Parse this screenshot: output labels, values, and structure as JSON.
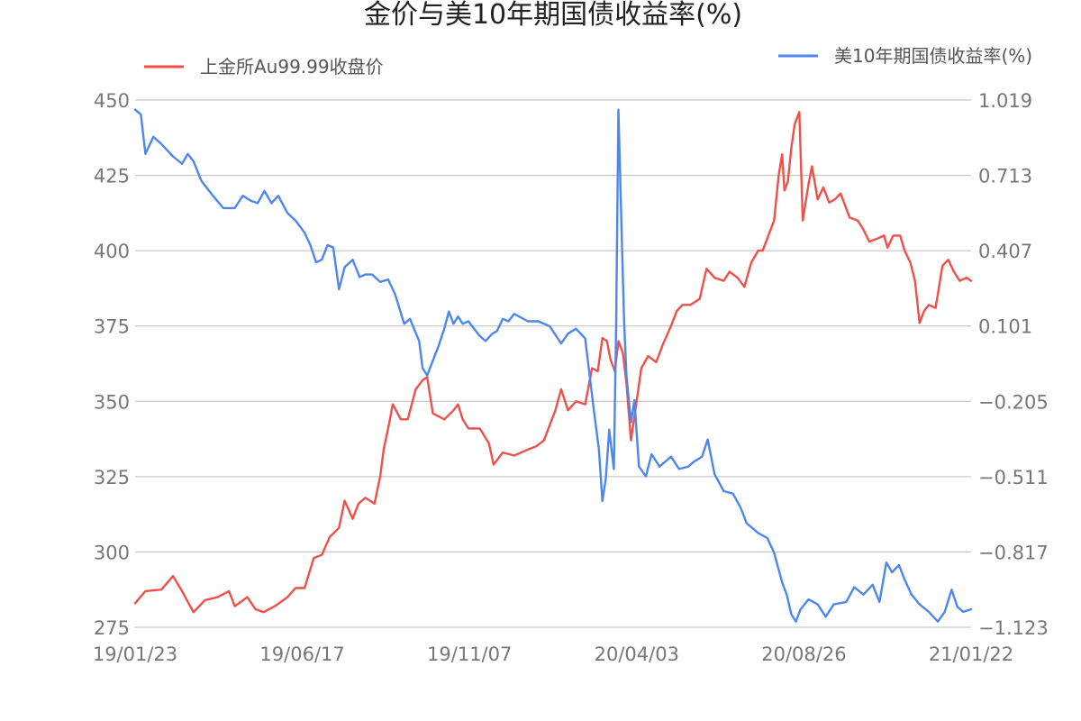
{
  "chart_data": {
    "type": "line",
    "title": "金价与美10年期国债收益率(%)",
    "legend_placement": "top",
    "grid": true,
    "x_tick_labels": [
      "19/01/23",
      "19/06/17",
      "19/11/07",
      "20/04/03",
      "20/08/26",
      "21/01/22"
    ],
    "x_range": [
      "2019-01-23",
      "2021-01-22"
    ],
    "y_left": {
      "ticks": [
        "450",
        "425",
        "400",
        "375",
        "350",
        "325",
        "300",
        "275"
      ],
      "range": [
        275,
        450
      ]
    },
    "y_right": {
      "ticks": [
        "1.019",
        "0.713",
        "0.407",
        "0.101",
        "−0.205",
        "−0.511",
        "−0.817",
        "−1.123"
      ],
      "range": [
        -1.123,
        1.019
      ]
    },
    "series": [
      {
        "name": "上金所Au99.99收盘价",
        "axis": "left",
        "color": "#f0504a",
        "points": [
          [
            "2019-01-23",
            283
          ],
          [
            "2019-02-01",
            287
          ],
          [
            "2019-02-15",
            287.5
          ],
          [
            "2019-02-25",
            292
          ],
          [
            "2019-03-05",
            287
          ],
          [
            "2019-03-15",
            280
          ],
          [
            "2019-03-25",
            284
          ],
          [
            "2019-04-05",
            285
          ],
          [
            "2019-04-15",
            287
          ],
          [
            "2019-04-20",
            282
          ],
          [
            "2019-05-01",
            285
          ],
          [
            "2019-05-08",
            281
          ],
          [
            "2019-05-15",
            280
          ],
          [
            "2019-05-25",
            282
          ],
          [
            "2019-06-05",
            285
          ],
          [
            "2019-06-12",
            288
          ],
          [
            "2019-06-20",
            288
          ],
          [
            "2019-06-28",
            298
          ],
          [
            "2019-07-05",
            299
          ],
          [
            "2019-07-12",
            305
          ],
          [
            "2019-07-20",
            308
          ],
          [
            "2019-07-25",
            317
          ],
          [
            "2019-08-01",
            311
          ],
          [
            "2019-08-06",
            316
          ],
          [
            "2019-08-12",
            318
          ],
          [
            "2019-08-20",
            316
          ],
          [
            "2019-08-25",
            325
          ],
          [
            "2019-08-28",
            334
          ],
          [
            "2019-09-02",
            343
          ],
          [
            "2019-09-05",
            349
          ],
          [
            "2019-09-12",
            344
          ],
          [
            "2019-09-18",
            344
          ],
          [
            "2019-09-25",
            354
          ],
          [
            "2019-10-01",
            357
          ],
          [
            "2019-10-05",
            358
          ],
          [
            "2019-10-10",
            346
          ],
          [
            "2019-10-20",
            344
          ],
          [
            "2019-10-28",
            347
          ],
          [
            "2019-11-01",
            349
          ],
          [
            "2019-11-05",
            344
          ],
          [
            "2019-11-10",
            341
          ],
          [
            "2019-11-20",
            341
          ],
          [
            "2019-11-28",
            336
          ],
          [
            "2019-12-02",
            329
          ],
          [
            "2019-12-10",
            333
          ],
          [
            "2019-12-20",
            332
          ],
          [
            "2020-01-01",
            334
          ],
          [
            "2020-01-08",
            335
          ],
          [
            "2020-01-15",
            337
          ],
          [
            "2020-01-25",
            347
          ],
          [
            "2020-01-30",
            354
          ],
          [
            "2020-02-05",
            347
          ],
          [
            "2020-02-12",
            350
          ],
          [
            "2020-02-20",
            349
          ],
          [
            "2020-02-26",
            361
          ],
          [
            "2020-03-02",
            360
          ],
          [
            "2020-03-06",
            371
          ],
          [
            "2020-03-10",
            370
          ],
          [
            "2020-03-13",
            364
          ],
          [
            "2020-03-17",
            360
          ],
          [
            "2020-03-20",
            370
          ],
          [
            "2020-03-24",
            366
          ],
          [
            "2020-03-27",
            356
          ],
          [
            "2020-03-31",
            337
          ],
          [
            "2020-04-03",
            345
          ],
          [
            "2020-04-09",
            361
          ],
          [
            "2020-04-15",
            365
          ],
          [
            "2020-04-22",
            363
          ],
          [
            "2020-04-28",
            369
          ],
          [
            "2020-05-05",
            375
          ],
          [
            "2020-05-10",
            380
          ],
          [
            "2020-05-15",
            382
          ],
          [
            "2020-05-22",
            382
          ],
          [
            "2020-05-30",
            384
          ],
          [
            "2020-06-05",
            394
          ],
          [
            "2020-06-12",
            391
          ],
          [
            "2020-06-20",
            390
          ],
          [
            "2020-06-25",
            393
          ],
          [
            "2020-07-02",
            391
          ],
          [
            "2020-07-08",
            388
          ],
          [
            "2020-07-14",
            396
          ],
          [
            "2020-07-20",
            400
          ],
          [
            "2020-07-24",
            400
          ],
          [
            "2020-07-28",
            404
          ],
          [
            "2020-08-03",
            410
          ],
          [
            "2020-08-07",
            425
          ],
          [
            "2020-08-10",
            432
          ],
          [
            "2020-08-12",
            420
          ],
          [
            "2020-08-15",
            423
          ],
          [
            "2020-08-18",
            434
          ],
          [
            "2020-08-21",
            442
          ],
          [
            "2020-08-25",
            446
          ],
          [
            "2020-08-28",
            410
          ],
          [
            "2020-09-02",
            422
          ],
          [
            "2020-09-05",
            428
          ],
          [
            "2020-09-10",
            417
          ],
          [
            "2020-09-15",
            421
          ],
          [
            "2020-09-20",
            416
          ],
          [
            "2020-09-25",
            417
          ],
          [
            "2020-09-30",
            419
          ],
          [
            "2020-10-08",
            411
          ],
          [
            "2020-10-15",
            410
          ],
          [
            "2020-10-20",
            407
          ],
          [
            "2020-10-25",
            403
          ],
          [
            "2020-11-01",
            404
          ],
          [
            "2020-11-07",
            405
          ],
          [
            "2020-11-10",
            401
          ],
          [
            "2020-11-15",
            405
          ],
          [
            "2020-11-21",
            405
          ],
          [
            "2020-11-25",
            400
          ],
          [
            "2020-11-30",
            396
          ],
          [
            "2020-12-04",
            390
          ],
          [
            "2020-12-08",
            376
          ],
          [
            "2020-12-12",
            380
          ],
          [
            "2020-12-16",
            382
          ],
          [
            "2020-12-22",
            381
          ],
          [
            "2020-12-28",
            395
          ],
          [
            "2021-01-02",
            397
          ],
          [
            "2021-01-07",
            393
          ],
          [
            "2021-01-12",
            390
          ],
          [
            "2021-01-18",
            391
          ],
          [
            "2021-01-22",
            390
          ]
        ]
      },
      {
        "name": "美10年期国债收益率(%)",
        "axis": "right",
        "color": "#4e86f0",
        "points": [
          [
            "2019-01-23",
            0.98
          ],
          [
            "2019-01-28",
            0.96
          ],
          [
            "2019-02-01",
            0.8
          ],
          [
            "2019-02-08",
            0.87
          ],
          [
            "2019-02-15",
            0.84
          ],
          [
            "2019-02-25",
            0.79
          ],
          [
            "2019-03-05",
            0.76
          ],
          [
            "2019-03-10",
            0.8
          ],
          [
            "2019-03-15",
            0.77
          ],
          [
            "2019-03-22",
            0.69
          ],
          [
            "2019-04-01",
            0.63
          ],
          [
            "2019-04-10",
            0.58
          ],
          [
            "2019-04-20",
            0.58
          ],
          [
            "2019-04-27",
            0.63
          ],
          [
            "2019-05-04",
            0.61
          ],
          [
            "2019-05-10",
            0.6
          ],
          [
            "2019-05-16",
            0.65
          ],
          [
            "2019-05-22",
            0.6
          ],
          [
            "2019-05-28",
            0.63
          ],
          [
            "2019-06-05",
            0.56
          ],
          [
            "2019-06-12",
            0.53
          ],
          [
            "2019-06-20",
            0.48
          ],
          [
            "2019-06-25",
            0.43
          ],
          [
            "2019-06-30",
            0.36
          ],
          [
            "2019-07-05",
            0.37
          ],
          [
            "2019-07-10",
            0.43
          ],
          [
            "2019-07-15",
            0.42
          ],
          [
            "2019-07-20",
            0.25
          ],
          [
            "2019-07-25",
            0.34
          ],
          [
            "2019-08-01",
            0.37
          ],
          [
            "2019-08-07",
            0.3
          ],
          [
            "2019-08-12",
            0.31
          ],
          [
            "2019-08-18",
            0.31
          ],
          [
            "2019-08-25",
            0.28
          ],
          [
            "2019-09-01",
            0.29
          ],
          [
            "2019-09-07",
            0.23
          ],
          [
            "2019-09-15",
            0.11
          ],
          [
            "2019-09-20",
            0.13
          ],
          [
            "2019-09-28",
            0.04
          ],
          [
            "2019-10-01",
            -0.07
          ],
          [
            "2019-10-05",
            -0.1
          ],
          [
            "2019-10-10",
            -0.04
          ],
          [
            "2019-10-15",
            0.02
          ],
          [
            "2019-10-20",
            0.09
          ],
          [
            "2019-10-24",
            0.16
          ],
          [
            "2019-10-28",
            0.11
          ],
          [
            "2019-11-01",
            0.14
          ],
          [
            "2019-11-05",
            0.11
          ],
          [
            "2019-11-10",
            0.12
          ],
          [
            "2019-11-15",
            0.09
          ],
          [
            "2019-11-20",
            0.06
          ],
          [
            "2019-11-25",
            0.04
          ],
          [
            "2019-12-01",
            0.07
          ],
          [
            "2019-12-05",
            0.08
          ],
          [
            "2019-12-10",
            0.13
          ],
          [
            "2019-12-15",
            0.12
          ],
          [
            "2019-12-20",
            0.15
          ],
          [
            "2020-01-01",
            0.12
          ],
          [
            "2020-01-10",
            0.12
          ],
          [
            "2020-01-20",
            0.1
          ],
          [
            "2020-01-30",
            0.03
          ],
          [
            "2020-02-05",
            0.07
          ],
          [
            "2020-02-12",
            0.09
          ],
          [
            "2020-02-20",
            0.05
          ],
          [
            "2020-02-27",
            -0.22
          ],
          [
            "2020-03-03",
            -0.4
          ],
          [
            "2020-03-06",
            -0.61
          ],
          [
            "2020-03-09",
            -0.52
          ],
          [
            "2020-03-12",
            -0.32
          ],
          [
            "2020-03-16",
            -0.48
          ],
          [
            "2020-03-18",
            0.08
          ],
          [
            "2020-03-20",
            0.98
          ],
          [
            "2020-03-23",
            0.45
          ],
          [
            "2020-03-25",
            0.12
          ],
          [
            "2020-03-27",
            -0.1
          ],
          [
            "2020-03-31",
            -0.29
          ],
          [
            "2020-04-03",
            -0.2
          ],
          [
            "2020-04-07",
            -0.47
          ],
          [
            "2020-04-13",
            -0.51
          ],
          [
            "2020-04-18",
            -0.42
          ],
          [
            "2020-04-25",
            -0.47
          ],
          [
            "2020-05-05",
            -0.43
          ],
          [
            "2020-05-12",
            -0.48
          ],
          [
            "2020-05-20",
            -0.47
          ],
          [
            "2020-05-25",
            -0.45
          ],
          [
            "2020-06-01",
            -0.43
          ],
          [
            "2020-06-06",
            -0.36
          ],
          [
            "2020-06-12",
            -0.5
          ],
          [
            "2020-06-20",
            -0.57
          ],
          [
            "2020-06-28",
            -0.58
          ],
          [
            "2020-07-05",
            -0.64
          ],
          [
            "2020-07-10",
            -0.7
          ],
          [
            "2020-07-20",
            -0.74
          ],
          [
            "2020-07-28",
            -0.76
          ],
          [
            "2020-08-03",
            -0.82
          ],
          [
            "2020-08-10",
            -0.94
          ],
          [
            "2020-08-14",
            -0.99
          ],
          [
            "2020-08-18",
            -1.07
          ],
          [
            "2020-08-22",
            -1.1
          ],
          [
            "2020-08-26",
            -1.05
          ],
          [
            "2020-09-02",
            -1.01
          ],
          [
            "2020-09-10",
            -1.03
          ],
          [
            "2020-09-17",
            -1.08
          ],
          [
            "2020-09-24",
            -1.03
          ],
          [
            "2020-10-05",
            -1.02
          ],
          [
            "2020-10-12",
            -0.96
          ],
          [
            "2020-10-20",
            -0.99
          ],
          [
            "2020-10-28",
            -0.95
          ],
          [
            "2020-11-03",
            -1.02
          ],
          [
            "2020-11-09",
            -0.86
          ],
          [
            "2020-11-14",
            -0.9
          ],
          [
            "2020-11-20",
            -0.87
          ],
          [
            "2020-11-25",
            -0.93
          ],
          [
            "2020-12-01",
            -0.99
          ],
          [
            "2020-12-08",
            -1.03
          ],
          [
            "2020-12-16",
            -1.06
          ],
          [
            "2020-12-24",
            -1.1
          ],
          [
            "2020-12-30",
            -1.06
          ],
          [
            "2021-01-05",
            -0.97
          ],
          [
            "2021-01-10",
            -1.04
          ],
          [
            "2021-01-15",
            -1.06
          ],
          [
            "2021-01-22",
            -1.05
          ]
        ]
      }
    ]
  }
}
